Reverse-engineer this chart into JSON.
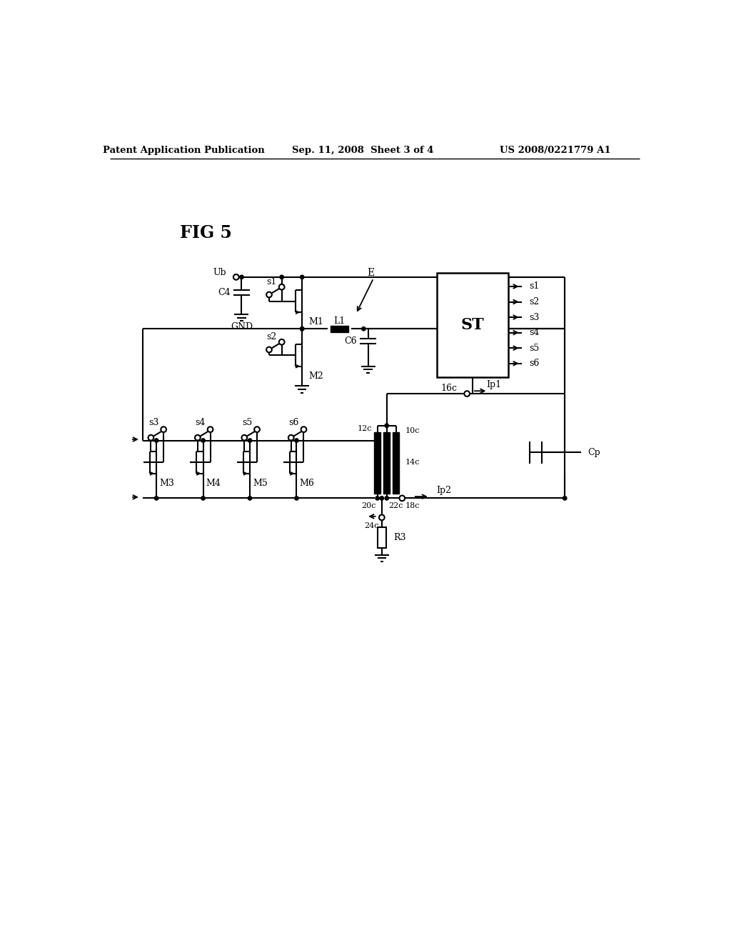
{
  "bg_color": "#ffffff",
  "line_color": "#000000",
  "header_left": "Patent Application Publication",
  "header_mid": "Sep. 11, 2008  Sheet 3 of 4",
  "header_right": "US 2008/0221779 A1",
  "fig_label": "FIG 5"
}
